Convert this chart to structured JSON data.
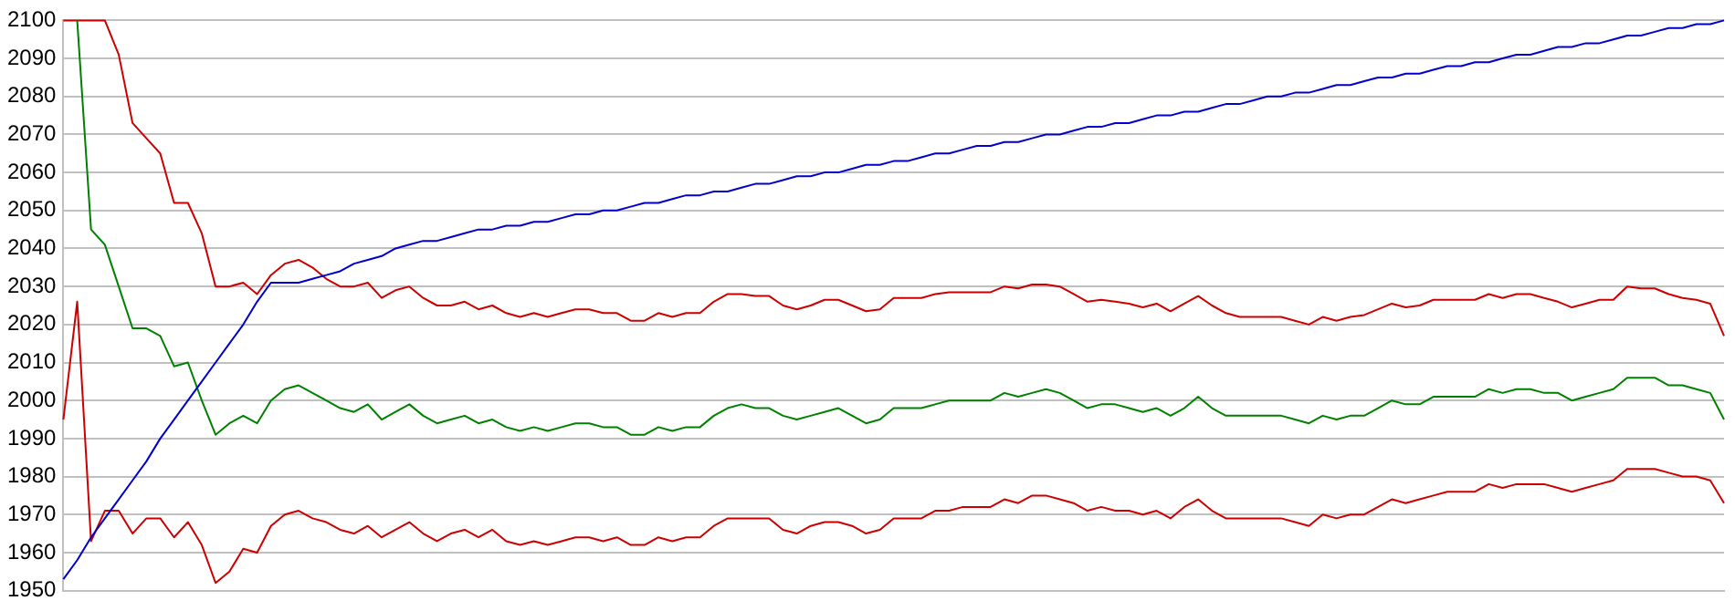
{
  "chart_data": {
    "type": "line",
    "categories": [
      null,
      null,
      null,
      null,
      null,
      null,
      null,
      null,
      null,
      null,
      null,
      null,
      null,
      null,
      null,
      null,
      null,
      null,
      null,
      null,
      null,
      null,
      null,
      null,
      null,
      null,
      null,
      null,
      null,
      null,
      null,
      null,
      null,
      null,
      null,
      null,
      null,
      null,
      null,
      null,
      null,
      null,
      null,
      null,
      null,
      null,
      null,
      null,
      null,
      null,
      null,
      null,
      null,
      null,
      null,
      null,
      null,
      null,
      null,
      null,
      null,
      null,
      null,
      null,
      null,
      null,
      null,
      null,
      null,
      null,
      null,
      null,
      null,
      null,
      null,
      null,
      null,
      null,
      null,
      null,
      null,
      null,
      null,
      null,
      null,
      null,
      null,
      null,
      null,
      null,
      null,
      null,
      null,
      null,
      null,
      null,
      null,
      null,
      null,
      null,
      null,
      null,
      null,
      null,
      null,
      null,
      null,
      null,
      null,
      null,
      null,
      null,
      null,
      null,
      null,
      null,
      null,
      null,
      null,
      null,
      null
    ],
    "series": [
      {
        "color": "#0000cc",
        "values": [
          1953,
          1958,
          1964,
          1969,
          1974,
          1979,
          1984,
          1990,
          1995,
          2000,
          2005,
          2010,
          2015,
          2020,
          2026,
          2031,
          2031,
          2031,
          2032,
          2033,
          2034,
          2036,
          2037,
          2038,
          2040,
          2041,
          2042,
          2042,
          2043,
          2044,
          2045,
          2045,
          2046,
          2046,
          2047,
          2047,
          2048,
          2049,
          2049,
          2050,
          2050,
          2051,
          2052,
          2052,
          2053,
          2054,
          2054,
          2055,
          2055,
          2056,
          2057,
          2057,
          2058,
          2059,
          2059,
          2060,
          2060,
          2061,
          2062,
          2062,
          2063,
          2063,
          2064,
          2065,
          2065,
          2066,
          2067,
          2067,
          2068,
          2068,
          2069,
          2070,
          2070,
          2071,
          2072,
          2072,
          2073,
          2073,
          2074,
          2075,
          2075,
          2076,
          2076,
          2077,
          2078,
          2078,
          2079,
          2080,
          2080,
          2081,
          2081,
          2082,
          2083,
          2083,
          2084,
          2085,
          2085,
          2086,
          2086,
          2087,
          2088,
          2088,
          2089,
          2089,
          2090,
          2091,
          2091,
          2092,
          2093,
          2093,
          2094,
          2094,
          2095,
          2096,
          2096,
          2097,
          2098,
          2098,
          2099,
          2099,
          2100
        ]
      },
      {
        "color": "#008000",
        "values": [
          null,
          2100,
          2045,
          2041,
          2030,
          2019,
          2019,
          2017,
          2009,
          2010,
          2000,
          1991,
          1994,
          1996,
          1994,
          2000,
          2003,
          2004,
          2002,
          2000,
          1998,
          1997,
          1999,
          1995,
          1997,
          1999,
          1996,
          1994,
          1995,
          1996,
          1994,
          1995,
          1993,
          1992,
          1993,
          1992,
          1993,
          1994,
          1994,
          1993,
          1993,
          1991,
          1991,
          1993,
          1992,
          1993,
          1993,
          1996,
          1998,
          1999,
          1998,
          1998,
          1996,
          1995,
          1996,
          1997,
          1998,
          1996,
          1994,
          1995,
          1998,
          1998,
          1998,
          1999,
          2000,
          2000,
          2000,
          2000,
          2002,
          2001,
          2002,
          2003,
          2002,
          2000,
          1998,
          1999,
          1999,
          1998,
          1997,
          1998,
          1996,
          1998,
          2001,
          1998,
          1996,
          1996,
          1996,
          1996,
          1996,
          1995,
          1994,
          1996,
          1995,
          1996,
          1996,
          1998,
          2000,
          1999,
          1999,
          2001,
          2001,
          2001,
          2001,
          2003,
          2002,
          2003,
          2003,
          2002,
          2002,
          2000,
          2001,
          2002,
          2003,
          2006,
          2006,
          2006,
          2004,
          2004,
          2003,
          2002,
          1995
        ]
      },
      {
        "color": "#cc0000",
        "values": [
          2100,
          2100,
          2100,
          2100,
          2091,
          2073,
          2069,
          2065,
          2052,
          2052,
          2044,
          2030,
          2030,
          2031,
          2028,
          2033,
          2036,
          2037,
          2035,
          2032,
          2030,
          2030,
          2031,
          2027,
          2029,
          2030,
          2027,
          2025,
          2025,
          2026,
          2024,
          2025,
          2023,
          2022,
          2023,
          2022,
          2023,
          2024,
          2024,
          2023,
          2023,
          2021,
          2021,
          2023,
          2022,
          2023,
          2023,
          2026,
          2028,
          2028,
          2027.5,
          2027.5,
          2025,
          2024,
          2025,
          2026.5,
          2026.5,
          2025,
          2023.5,
          2024,
          2027,
          2027,
          2027,
          2028,
          2028.5,
          2028.5,
          2028.5,
          2028.5,
          2030,
          2029.5,
          2030.5,
          2030.5,
          2030,
          2028,
          2026,
          2026.5,
          2026,
          2025.5,
          2024.5,
          2025.5,
          2023.5,
          2025.5,
          2027.5,
          2025,
          2023,
          2022,
          2022,
          2022,
          2022,
          2021,
          2020,
          2022,
          2021,
          2022,
          2022.5,
          2024,
          2025.5,
          2024.5,
          2025,
          2026.5,
          2026.5,
          2026.5,
          2026.5,
          2028,
          2027,
          2028,
          2028,
          2027,
          2026,
          2024.5,
          2025.5,
          2026.5,
          2026.5,
          2030,
          2029.5,
          2029.5,
          2028,
          2027,
          2026.5,
          2025.5,
          2017
        ]
      },
      {
        "color": "#cc0000",
        "values": [
          1995,
          2026,
          1963,
          1971,
          1971,
          1965,
          1969,
          1969,
          1964,
          1968,
          1962,
          1952,
          1955,
          1961,
          1960,
          1967,
          1970,
          1971,
          1969,
          1968,
          1966,
          1965,
          1967,
          1964,
          1966,
          1968,
          1965,
          1963,
          1965,
          1966,
          1964,
          1966,
          1963,
          1962,
          1963,
          1962,
          1963,
          1964,
          1964,
          1963,
          1964,
          1962,
          1962,
          1964,
          1963,
          1964,
          1964,
          1967,
          1969,
          1969,
          1969,
          1969,
          1966,
          1965,
          1967,
          1968,
          1968,
          1967,
          1965,
          1966,
          1969,
          1969,
          1969,
          1971,
          1971,
          1972,
          1972,
          1972,
          1974,
          1973,
          1975,
          1975,
          1974,
          1973,
          1971,
          1972,
          1971,
          1971,
          1970,
          1971,
          1969,
          1972,
          1974,
          1971,
          1969,
          1969,
          1969,
          1969,
          1969,
          1968,
          1967,
          1970,
          1969,
          1970,
          1970,
          1972,
          1974,
          1973,
          1974,
          1975,
          1976,
          1976,
          1976,
          1978,
          1977,
          1978,
          1978,
          1978,
          1977,
          1976,
          1977,
          1978,
          1979,
          1982,
          1982,
          1982,
          1981,
          1980,
          1980,
          1979,
          1973
        ]
      }
    ],
    "ylim": [
      1950,
      2100
    ],
    "yticks": [
      1950,
      1960,
      1970,
      1980,
      1990,
      2000,
      2010,
      2020,
      2030,
      2040,
      2050,
      2060,
      2070,
      2080,
      2090,
      2100
    ],
    "grid": "y",
    "legend": false,
    "tick_labels": "y",
    "marker": "none",
    "line_style": "solid"
  }
}
